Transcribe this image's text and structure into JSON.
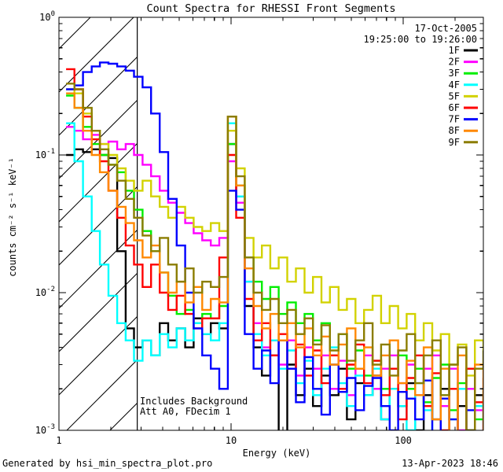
{
  "header": {
    "title": "Count Spectra for RHESSI Front Segments",
    "date": "17-Oct-2005",
    "time_range": "19:25:00 to 19:26:00"
  },
  "notes": {
    "line1": "Includes Background",
    "line2": "Att A0, FDecim 1"
  },
  "footer": {
    "left": "Generated by hsi_min_spectra_plot.pro",
    "right": "13-Apr-2023 18:46"
  },
  "chart_data": {
    "type": "line",
    "mode": "staircase",
    "title": "Count Spectra for RHESSI Front Segments",
    "xlabel": "Energy (keV)",
    "ylabel": "counts cm⁻² s⁻¹ keV⁻¹",
    "xscale": "log",
    "yscale": "log",
    "xlim": [
      1,
      292
    ],
    "ylim": [
      0.001,
      1
    ],
    "x_major_ticks": [
      1,
      10,
      100
    ],
    "x_tick_labels": [
      "1",
      "10",
      "100"
    ],
    "y_major_exponents": [
      0,
      -1,
      -2,
      -3
    ],
    "grid": false,
    "legend_position": "top-right-inside",
    "hatch_region": {
      "xmin": 1.0,
      "xmax": 2.85,
      "style": "diagonal-lines"
    },
    "energies": [
      1.1,
      1.23,
      1.38,
      1.55,
      1.73,
      1.94,
      2.18,
      2.44,
      2.73,
      3.06,
      3.43,
      3.85,
      4.31,
      4.83,
      5.41,
      6.06,
      6.8,
      7.62,
      8.54,
      9.57,
      10.7,
      12.0,
      13.5,
      15.1,
      16.9,
      18.9,
      21.2,
      23.8,
      26.7,
      29.9,
      33.5,
      37.5,
      42.1,
      47.1,
      52.8,
      59.2,
      66.4,
      74.4,
      83.4,
      93.4,
      104.7,
      117.3,
      131.5,
      147.4,
      165.2,
      185.1,
      207.5,
      232.6,
      260.7,
      292.2
    ],
    "series": [
      {
        "name": "1F",
        "color": "#000000",
        "values": [
          0.1,
          0.11,
          0.105,
          0.11,
          0.1,
          0.095,
          0.02,
          0.0055,
          0.004,
          0.0045,
          0.0035,
          0.006,
          0.0045,
          0.0055,
          0.004,
          0.0065,
          0.005,
          0.006,
          0.0055,
          0.12,
          0.05,
          0.008,
          0.004,
          0.0025,
          0.0035,
          0.0008,
          0.003,
          0.0018,
          0.0028,
          0.0015,
          0.0025,
          0.0018,
          0.0028,
          0.0012,
          0.0022,
          0.0018,
          0.0025,
          0.0012,
          0.002,
          0.0015,
          0.0022,
          0.001,
          0.0018,
          0.0012,
          0.002,
          0.0008,
          0.0015,
          0.001,
          0.0018,
          0.0006
        ]
      },
      {
        "name": "2F",
        "color": "#ff00ff",
        "values": [
          0.16,
          0.15,
          0.13,
          0.14,
          0.12,
          0.125,
          0.11,
          0.12,
          0.1,
          0.085,
          0.07,
          0.055,
          0.045,
          0.038,
          0.032,
          0.027,
          0.024,
          0.022,
          0.025,
          0.09,
          0.045,
          0.012,
          0.006,
          0.004,
          0.0045,
          0.003,
          0.0045,
          0.0025,
          0.004,
          0.0028,
          0.0035,
          0.002,
          0.0032,
          0.0018,
          0.0028,
          0.0035,
          0.002,
          0.0028,
          0.0035,
          0.0022,
          0.003,
          0.0018,
          0.0028,
          0.0035,
          0.0015,
          0.0028,
          0.001,
          0.002,
          0.0014,
          0.0008
        ]
      },
      {
        "name": "3F",
        "color": "#00ee00",
        "values": [
          0.27,
          0.22,
          0.16,
          0.12,
          0.1,
          0.085,
          0.075,
          0.055,
          0.04,
          0.028,
          0.02,
          0.014,
          0.0095,
          0.007,
          0.0075,
          0.006,
          0.007,
          0.0065,
          0.008,
          0.12,
          0.06,
          0.018,
          0.012,
          0.009,
          0.011,
          0.007,
          0.0085,
          0.006,
          0.007,
          0.0045,
          0.006,
          0.0035,
          0.005,
          0.0028,
          0.0038,
          0.0025,
          0.0032,
          0.002,
          0.0028,
          0.0035,
          0.002,
          0.0028,
          0.0016,
          0.0024,
          0.003,
          0.0014,
          0.0022,
          0.0028,
          0.0012,
          0.002
        ]
      },
      {
        "name": "4F",
        "color": "#00ffff",
        "values": [
          0.17,
          0.09,
          0.05,
          0.028,
          0.016,
          0.0095,
          0.006,
          0.0045,
          0.0032,
          0.0045,
          0.0035,
          0.005,
          0.004,
          0.0055,
          0.0045,
          0.006,
          0.005,
          0.0045,
          0.006,
          0.17,
          0.05,
          0.012,
          0.005,
          0.0035,
          0.0045,
          0.0028,
          0.0038,
          0.0022,
          0.0032,
          0.0018,
          0.0028,
          0.004,
          0.0022,
          0.0015,
          0.0025,
          0.0018,
          0.0028,
          0.0012,
          0.002,
          0.0015,
          0.001,
          0.0022,
          0.0014,
          0.0008,
          0.0018,
          0.0012,
          0.002,
          0.0009,
          0.0015,
          0.0011
        ]
      },
      {
        "name": "5F",
        "color": "#d2d200",
        "values": [
          0.3,
          0.28,
          0.2,
          0.15,
          0.12,
          0.1,
          0.08,
          0.065,
          0.055,
          0.065,
          0.05,
          0.042,
          0.035,
          0.042,
          0.035,
          0.03,
          0.028,
          0.032,
          0.028,
          0.15,
          0.08,
          0.025,
          0.018,
          0.022,
          0.015,
          0.018,
          0.012,
          0.015,
          0.01,
          0.013,
          0.0085,
          0.011,
          0.0075,
          0.009,
          0.006,
          0.0075,
          0.0095,
          0.006,
          0.008,
          0.0055,
          0.007,
          0.0045,
          0.006,
          0.0038,
          0.005,
          0.003,
          0.0042,
          0.0025,
          0.0045,
          0.0028
        ]
      },
      {
        "name": "6F",
        "color": "#ff0000",
        "values": [
          0.42,
          0.3,
          0.19,
          0.13,
          0.09,
          0.055,
          0.035,
          0.022,
          0.016,
          0.011,
          0.016,
          0.01,
          0.0075,
          0.0095,
          0.007,
          0.0055,
          0.0065,
          0.0065,
          0.018,
          0.1,
          0.035,
          0.009,
          0.0045,
          0.006,
          0.0035,
          0.005,
          0.0028,
          0.0042,
          0.0025,
          0.0038,
          0.0022,
          0.0035,
          0.002,
          0.003,
          0.0042,
          0.0022,
          0.0032,
          0.0018,
          0.0028,
          0.0012,
          0.0024,
          0.0035,
          0.0015,
          0.0026,
          0.001,
          0.002,
          0.0007,
          0.0028,
          0.0016,
          0.0024
        ]
      },
      {
        "name": "7F",
        "color": "#0000ff",
        "values": [
          0.3,
          0.32,
          0.4,
          0.44,
          0.47,
          0.46,
          0.44,
          0.41,
          0.37,
          0.31,
          0.2,
          0.105,
          0.048,
          0.022,
          0.01,
          0.0055,
          0.0035,
          0.0028,
          0.002,
          0.055,
          0.04,
          0.005,
          0.0028,
          0.0038,
          0.0022,
          0.0045,
          0.0028,
          0.0016,
          0.0034,
          0.002,
          0.0013,
          0.003,
          0.0019,
          0.0024,
          0.0014,
          0.0021,
          0.0024,
          0.0015,
          0.001,
          0.0019,
          0.0017,
          0.0012,
          0.0023,
          0.0008,
          0.0017,
          0.0012,
          0.0009,
          0.0014,
          0.0008,
          0.0012
        ]
      },
      {
        "name": "8F",
        "color": "#ff8800",
        "values": [
          0.28,
          0.22,
          0.15,
          0.1,
          0.075,
          0.055,
          0.042,
          0.032,
          0.024,
          0.018,
          0.022,
          0.014,
          0.01,
          0.012,
          0.0085,
          0.011,
          0.0075,
          0.009,
          0.0085,
          0.19,
          0.06,
          0.015,
          0.008,
          0.0055,
          0.007,
          0.0045,
          0.006,
          0.004,
          0.0055,
          0.0035,
          0.0048,
          0.003,
          0.0042,
          0.0055,
          0.0028,
          0.004,
          0.0025,
          0.0035,
          0.0045,
          0.0022,
          0.0032,
          0.0018,
          0.004,
          0.0012,
          0.0028,
          0.0006,
          0.0035,
          0.0008,
          0.003,
          0.0005
        ]
      },
      {
        "name": "9F",
        "color": "#8b7d00",
        "values": [
          0.33,
          0.3,
          0.22,
          0.15,
          0.11,
          0.085,
          0.065,
          0.048,
          0.035,
          0.026,
          0.02,
          0.025,
          0.016,
          0.012,
          0.015,
          0.01,
          0.012,
          0.011,
          0.013,
          0.19,
          0.07,
          0.018,
          0.01,
          0.0075,
          0.009,
          0.006,
          0.0075,
          0.005,
          0.0065,
          0.0042,
          0.0058,
          0.0038,
          0.005,
          0.0032,
          0.0045,
          0.006,
          0.003,
          0.0042,
          0.0025,
          0.0038,
          0.005,
          0.0022,
          0.0035,
          0.0045,
          0.0018,
          0.003,
          0.004,
          0.001,
          0.0028,
          0.0038
        ]
      }
    ]
  }
}
